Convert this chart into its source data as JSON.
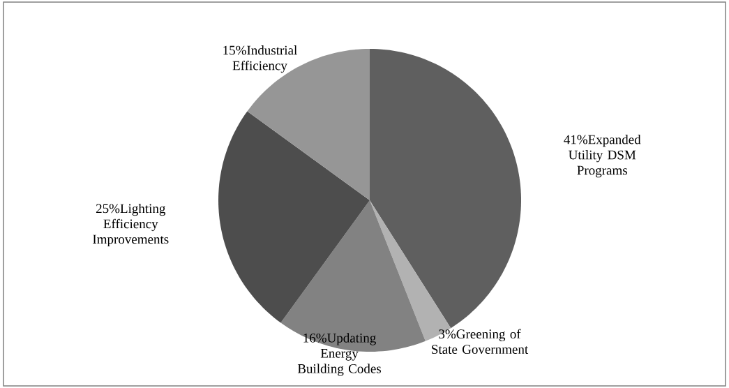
{
  "chart_data": {
    "type": "pie",
    "categories": [
      "Expanded Utility DSM Programs",
      "Greening of State Government",
      "Updating Energy Building Codes",
      "Lighting Efficiency Improvements",
      "Industrial Efficiency"
    ],
    "values": [
      41,
      3,
      16,
      25,
      15
    ],
    "value_labels": [
      "41%",
      "3%",
      "16%",
      "25%",
      "15%"
    ],
    "colors": [
      "#5f5f5f",
      "#b2b2b2",
      "#828282",
      "#4d4d4d",
      "#969696"
    ]
  }
}
